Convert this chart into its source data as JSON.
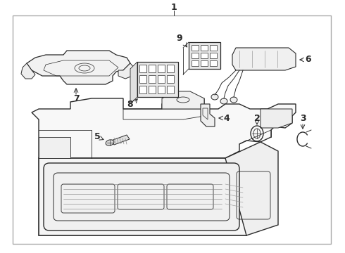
{
  "background_color": "#ffffff",
  "border_color": "#aaaaaa",
  "line_color": "#2a2a2a",
  "figsize": [
    4.9,
    3.6
  ],
  "dpi": 100
}
